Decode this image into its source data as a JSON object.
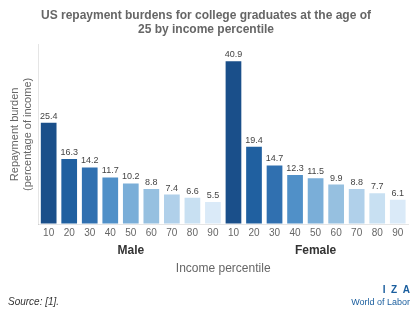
{
  "chart_data": {
    "type": "bar",
    "title": "US repayment burdens for college graduates at the age of\n25 by income percentile",
    "ylabel": "Repayment burden\n(percentage of income)",
    "xlabel": "Income percentile",
    "groups": [
      "Male",
      "Female"
    ],
    "categories": [
      "10",
      "20",
      "30",
      "40",
      "50",
      "60",
      "70",
      "80",
      "90",
      "10",
      "20",
      "30",
      "40",
      "50",
      "60",
      "70",
      "80",
      "90"
    ],
    "values": [
      25.4,
      16.3,
      14.2,
      11.7,
      10.2,
      8.8,
      7.4,
      6.6,
      5.5,
      40.9,
      19.4,
      14.7,
      12.3,
      11.5,
      9.9,
      8.8,
      7.7,
      6.1
    ],
    "colors": [
      "#1a4f8a",
      "#2060a0",
      "#3070b0",
      "#5090c8",
      "#7aaed8",
      "#96c0e0",
      "#b0d0ea",
      "#c8e0f2",
      "#daeaf8",
      "#1a4f8a",
      "#2060a0",
      "#3070b0",
      "#5090c8",
      "#7aaed8",
      "#96c0e0",
      "#b0d0ea",
      "#c8e0f2",
      "#daeaf8"
    ],
    "ylim": [
      0,
      45
    ],
    "grid": false,
    "tick_labels": "x",
    "data_labels": true,
    "source": "Source: [1].",
    "logo": [
      "I  Z  A",
      "World of Labor"
    ]
  }
}
